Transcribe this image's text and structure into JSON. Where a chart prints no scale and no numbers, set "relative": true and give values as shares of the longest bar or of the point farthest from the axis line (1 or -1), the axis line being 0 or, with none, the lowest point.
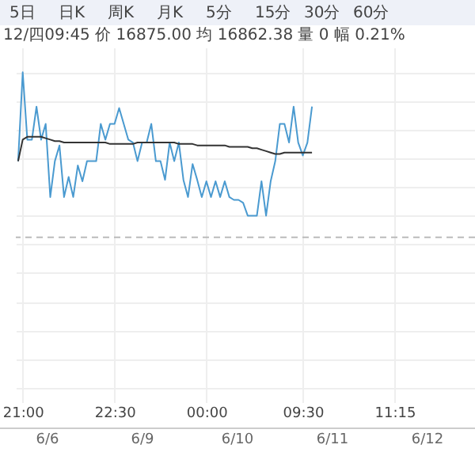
{
  "chart_data": {
    "type": "line",
    "subtitle": "12/四09:45 价 16875.00 均 16862.38 量 0 幅 0.21%",
    "relative": true,
    "grid": true,
    "categories": [
      null,
      "21:00",
      null,
      null,
      null,
      null,
      null,
      null,
      null,
      null,
      null,
      null,
      null,
      null,
      null,
      null,
      null,
      null,
      null,
      null,
      null,
      "22:30",
      null,
      null,
      null,
      null,
      null,
      null,
      null,
      null,
      null,
      null,
      null,
      null,
      null,
      null,
      null,
      null,
      null,
      null,
      null,
      "00:00",
      null,
      null,
      null,
      null,
      null,
      null,
      null,
      null,
      null,
      null,
      null,
      null,
      null,
      null,
      null,
      null,
      null,
      null,
      null,
      null,
      "09:30",
      null,
      null,
      null,
      null,
      null,
      null,
      null,
      null,
      null,
      null,
      null,
      null,
      null,
      null,
      null,
      null,
      null,
      null,
      null,
      "11:15",
      null,
      null,
      null,
      null,
      null,
      null,
      null,
      null,
      null,
      null,
      null,
      null,
      null,
      null,
      null,
      null,
      null
    ],
    "series": [
      {
        "color": "#4a9ad0",
        "values": [
          0.38,
          1,
          0.53,
          0.53,
          0.76,
          0.53,
          0.64,
          0.13,
          0.38,
          0.49,
          0.13,
          0.27,
          0.13,
          0.35,
          0.24,
          0.38,
          0.38,
          0.38,
          0.64,
          0.53,
          0.64,
          0.64,
          0.75,
          0.64,
          0.53,
          0.51,
          0.38,
          0.51,
          0.51,
          0.64,
          0.38,
          0.38,
          0.25,
          0.51,
          0.38,
          0.51,
          0.25,
          0.13,
          0.36,
          0.25,
          0.13,
          0.24,
          0.13,
          0.24,
          0.13,
          0.24,
          0.13,
          0.11,
          0.11,
          0.09,
          0,
          0,
          0,
          0.24,
          0,
          0.24,
          0.38,
          0.64,
          0.64,
          0.51,
          0.76,
          0.51,
          0.42,
          0.51,
          0.76,
          null,
          null,
          null,
          null,
          null,
          null,
          null,
          null,
          null,
          null,
          null,
          null,
          null,
          null,
          null,
          null,
          null,
          null,
          null,
          null,
          null,
          null,
          null,
          null,
          null,
          null,
          null,
          null,
          null,
          null,
          null,
          null,
          null,
          null,
          null
        ]
      },
      {
        "color": "#333333",
        "values": [
          0.38,
          0.53,
          0.55,
          0.55,
          0.55,
          0.55,
          0.54,
          0.53,
          0.52,
          0.52,
          0.51,
          0.51,
          0.51,
          0.51,
          0.51,
          0.51,
          0.51,
          0.51,
          0.51,
          0.51,
          0.5,
          0.5,
          0.5,
          0.5,
          0.5,
          0.5,
          0.51,
          0.51,
          0.51,
          0.51,
          0.51,
          0.51,
          0.51,
          0.51,
          0.51,
          0.5,
          0.5,
          0.5,
          0.5,
          0.49,
          0.49,
          0.49,
          0.49,
          0.49,
          0.49,
          0.49,
          0.48,
          0.48,
          0.48,
          0.48,
          0.48,
          0.47,
          0.47,
          0.46,
          0.45,
          0.44,
          0.43,
          0.43,
          0.44,
          0.44,
          0.44,
          0.44,
          0.44,
          0.44,
          0.44,
          null,
          null,
          null,
          null,
          null,
          null,
          null,
          null,
          null,
          null,
          null,
          null,
          null,
          null,
          null,
          null,
          null,
          null,
          null,
          null,
          null,
          null,
          null,
          null,
          null,
          null,
          null,
          null,
          null,
          null,
          null,
          null,
          null,
          null,
          null
        ]
      }
    ],
    "ref_lines": [
      {
        "axis": "y",
        "value": -0.15,
        "line_style": "dashed",
        "color": "#bbbbbb"
      }
    ],
    "annotations": [
      "5日",
      "日K",
      "周K",
      "月K",
      "5分",
      "15分",
      "30分",
      "60分",
      "6/6",
      "6/9",
      "6/10",
      "6/11",
      "6/12"
    ]
  }
}
